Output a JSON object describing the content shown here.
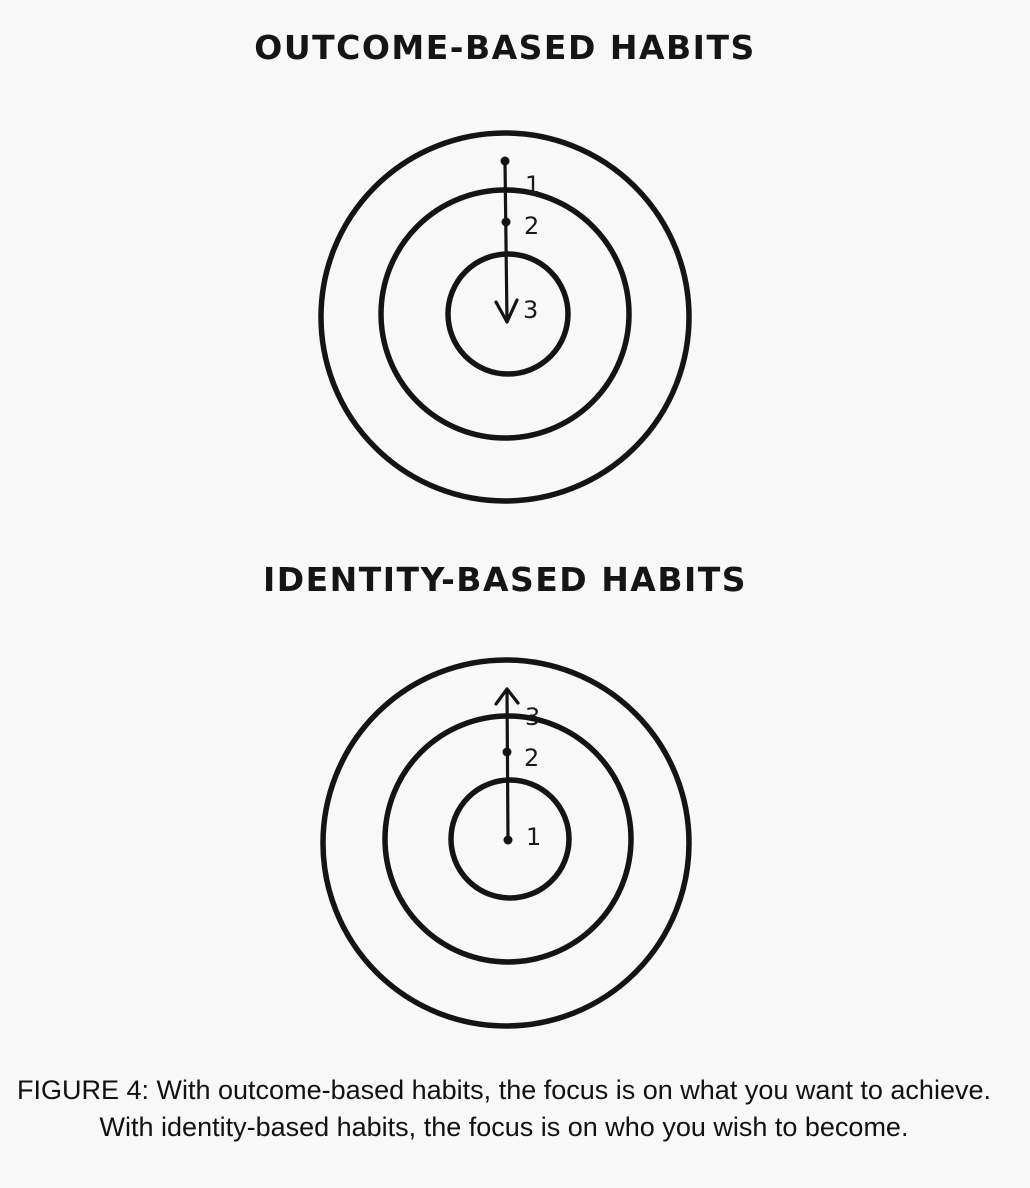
{
  "outcome": {
    "title": "OUTCOME-BASED HABITS",
    "labels": [
      "1",
      "2",
      "3"
    ]
  },
  "identity": {
    "title": "IDENTITY-BASED HABITS",
    "labels": [
      "1",
      "2",
      "3"
    ]
  },
  "caption": "FIGURE 4: With outcome-based habits, the focus is on what you want to achieve. With identity-based habits, the focus is on who you wish to become."
}
